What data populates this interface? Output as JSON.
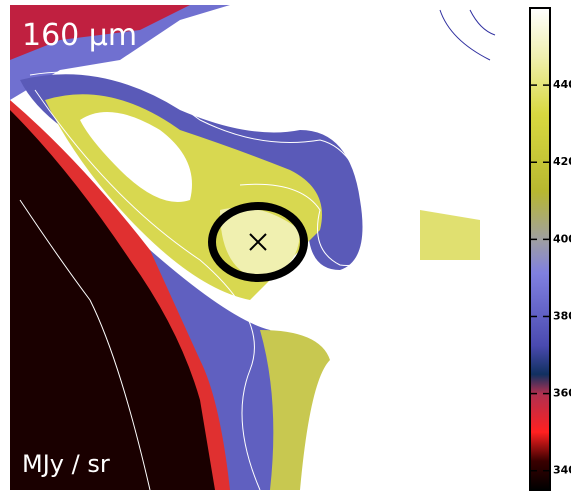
{
  "image": {
    "band_label": "160 μm",
    "unit_label": "MJy / sr"
  },
  "colorbar": {
    "lim": [
      335,
      460
    ],
    "ticks": [
      440,
      420,
      400,
      380,
      360,
      340
    ]
  }
}
